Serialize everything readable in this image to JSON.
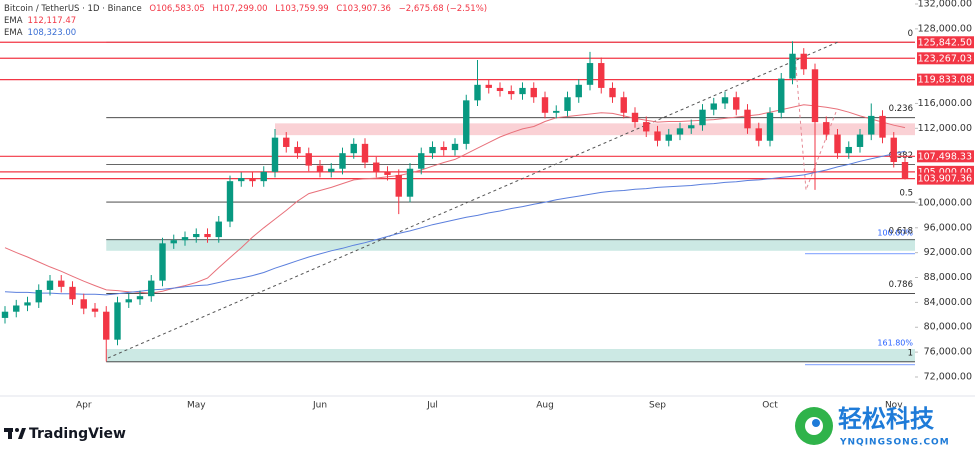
{
  "header": {
    "symbol": "Bitcoin / TetherUS · 1D · Binance",
    "open": "O106,583.05",
    "high": "H107,299.00",
    "low": "L103,759.99",
    "close": "C103,907.36",
    "change": "−2,675.68 (−2.51%)"
  },
  "branding": {
    "logo": "TradingView",
    "watermark": "轻松科技",
    "watermark_url": "YNQINGSONG.COM"
  },
  "chart_data": {
    "type": "candlestick",
    "categories": [
      null,
      null,
      null,
      null,
      null,
      null,
      null,
      "Apr",
      null,
      null,
      null,
      null,
      null,
      null,
      null,
      null,
      null,
      "May",
      null,
      null,
      null,
      null,
      null,
      null,
      null,
      null,
      null,
      null,
      "Jun",
      null,
      null,
      null,
      null,
      null,
      null,
      null,
      null,
      null,
      "Jul",
      null,
      null,
      null,
      null,
      null,
      null,
      null,
      null,
      null,
      "Aug",
      null,
      null,
      null,
      null,
      null,
      null,
      null,
      null,
      null,
      "Sep",
      null,
      null,
      null,
      null,
      null,
      null,
      null,
      null,
      null,
      "Oct",
      null,
      null,
      null,
      null,
      null,
      null,
      null,
      null,
      null,
      null,
      "Nov",
      null
    ],
    "open": [
      81500,
      82500,
      83500,
      84000,
      86000,
      87500,
      86500,
      84500,
      83000,
      82500,
      78000,
      84000,
      84500,
      85000,
      87500,
      93500,
      94000,
      94500,
      95000,
      94500,
      97000,
      103500,
      104000,
      103500,
      105000,
      110500,
      109000,
      108000,
      106000,
      105000,
      105500,
      108000,
      109500,
      106500,
      105000,
      104500,
      101000,
      105500,
      108000,
      109000,
      108500,
      109500,
      116500,
      119000,
      118500,
      118000,
      117500,
      118500,
      117000,
      114500,
      114800,
      117000,
      119000,
      122500,
      118500,
      117000,
      114500,
      113000,
      111500,
      110000,
      111000,
      112000,
      112500,
      115000,
      116000,
      117000,
      115000,
      112000,
      110000,
      114500,
      120000,
      124000,
      121500,
      113000,
      111000,
      108000,
      109000,
      111000,
      114000,
      110500,
      106583.05
    ],
    "high": [
      83400,
      84400,
      84900,
      86900,
      88400,
      88400,
      87400,
      85400,
      83900,
      83400,
      84900,
      85400,
      85900,
      88400,
      94400,
      94900,
      95400,
      95900,
      95900,
      97900,
      104400,
      104900,
      104900,
      105900,
      111900,
      111400,
      109900,
      108900,
      106900,
      106400,
      108900,
      110400,
      110400,
      107400,
      105900,
      105400,
      106400,
      108900,
      109900,
      109900,
      110400,
      117400,
      123000,
      119900,
      119400,
      118900,
      119400,
      119400,
      117900,
      115700,
      117900,
      119900,
      124300,
      123400,
      119400,
      117900,
      115400,
      113900,
      112400,
      111900,
      112900,
      113400,
      115900,
      116900,
      117900,
      117900,
      115900,
      112900,
      115400,
      120900,
      126000,
      124900,
      122400,
      113900,
      111900,
      109900,
      111900,
      116000,
      114900,
      111400,
      107299
    ],
    "low": [
      80600,
      81600,
      82600,
      83100,
      85100,
      85600,
      83600,
      82100,
      81600,
      74500,
      77100,
      83100,
      83600,
      84100,
      86600,
      92600,
      93100,
      93600,
      93600,
      93600,
      96100,
      102600,
      102600,
      102600,
      104100,
      108100,
      107100,
      105100,
      104100,
      104100,
      104600,
      107100,
      105600,
      104100,
      103600,
      98200,
      100100,
      104600,
      107100,
      107600,
      107600,
      108600,
      115600,
      117600,
      117100,
      116600,
      116600,
      116100,
      113600,
      113600,
      113900,
      116100,
      118100,
      117600,
      116100,
      113600,
      112100,
      110600,
      109100,
      109100,
      110100,
      111100,
      111600,
      114100,
      115100,
      114100,
      111100,
      109100,
      109100,
      113600,
      119100,
      120600,
      102100,
      110100,
      107100,
      107100,
      108100,
      110100,
      109600,
      105700,
      103759.99
    ],
    "close": [
      82500,
      83500,
      84000,
      86000,
      87500,
      86500,
      84500,
      83000,
      82500,
      78000,
      84000,
      84500,
      85000,
      87500,
      93500,
      94000,
      94500,
      95000,
      94500,
      97000,
      103500,
      104000,
      103500,
      105000,
      110500,
      109000,
      108000,
      106000,
      105000,
      105500,
      108000,
      109500,
      106500,
      105000,
      104500,
      101000,
      105500,
      108000,
      109000,
      108500,
      109500,
      116500,
      119000,
      118500,
      118000,
      117500,
      118500,
      117000,
      114500,
      114800,
      117000,
      119000,
      122500,
      118500,
      117000,
      114500,
      113000,
      111500,
      110000,
      111000,
      112000,
      112500,
      115000,
      116000,
      117000,
      115000,
      112000,
      110000,
      114500,
      120000,
      124000,
      121500,
      113000,
      111000,
      108000,
      109000,
      111000,
      114000,
      110500,
      106583.05,
      103907.36
    ],
    "up_color": "#089981",
    "down_color": "#f23645",
    "series": [
      {
        "name": "EMA",
        "legend_value": "112,117.47",
        "color": "#e8707a",
        "values": [
          92800,
          92000,
          91300,
          90500,
          89700,
          89000,
          88200,
          87400,
          86700,
          86000,
          85900,
          85700,
          85600,
          85500,
          85800,
          86300,
          86700,
          87200,
          87900,
          89600,
          91200,
          92800,
          94500,
          96000,
          97400,
          98800,
          100300,
          101500,
          102000,
          102500,
          103100,
          103700,
          103900,
          104000,
          104200,
          104400,
          104800,
          105300,
          105900,
          106500,
          107000,
          107900,
          108800,
          109700,
          110600,
          111300,
          111900,
          112300,
          113100,
          113700,
          113900,
          114100,
          114300,
          114500,
          114400,
          114000,
          113600,
          113300,
          113000,
          113100,
          113100,
          113200,
          113300,
          113400,
          113600,
          113800,
          114000,
          114200,
          114600,
          115000,
          115400,
          115800,
          115600,
          115400,
          115100,
          114600,
          114000,
          113500,
          113000,
          112500,
          112117.47
        ]
      },
      {
        "name": "EMA",
        "legend_value": "108,323.00",
        "color": "#5b7fdd",
        "values": [
          85700,
          85600,
          85600,
          85500,
          85500,
          85400,
          85400,
          85300,
          85300,
          85200,
          85400,
          85600,
          85800,
          86000,
          86100,
          86300,
          86500,
          86700,
          86800,
          87200,
          87600,
          87900,
          88300,
          88800,
          89500,
          90100,
          90700,
          91300,
          91800,
          92300,
          92700,
          93200,
          93600,
          94100,
          94600,
          95100,
          95500,
          96000,
          96500,
          96900,
          97300,
          97700,
          98000,
          98400,
          98700,
          99100,
          99400,
          99800,
          100100,
          100500,
          100800,
          101100,
          101400,
          101700,
          101900,
          102000,
          102200,
          102300,
          102500,
          102600,
          102700,
          102800,
          103000,
          103100,
          103300,
          103400,
          103600,
          103700,
          103900,
          104100,
          104300,
          104500,
          104900,
          105300,
          105800,
          106200,
          106700,
          107100,
          107500,
          107900,
          108323
        ]
      }
    ],
    "ylim": [
      69100,
      132000
    ],
    "yticks": [
      {
        "value": 72000,
        "label": "72,000.00"
      },
      {
        "value": 76000,
        "label": "76,000.00"
      },
      {
        "value": 80000,
        "label": "80,000.00"
      },
      {
        "value": 84000,
        "label": "84,000.00"
      },
      {
        "value": 88000,
        "label": "88,000.00"
      },
      {
        "value": 92000,
        "label": "92,000.00"
      },
      {
        "value": 96000,
        "label": "96,000.00"
      },
      {
        "value": 100000,
        "label": "100,000.00"
      },
      {
        "value": 112000,
        "label": "112,000.00"
      },
      {
        "value": 116000,
        "label": "116,000.00"
      },
      {
        "value": 128000,
        "label": "128,000.00"
      },
      {
        "value": 132000,
        "label": "132,000.00"
      }
    ],
    "grid": false,
    "price_lines": [
      {
        "value": 125842.5,
        "label": "125,842.50"
      },
      {
        "value": 123267.03,
        "label": "123,267.03"
      },
      {
        "value": 119833.08,
        "label": "119,833.08"
      },
      {
        "value": 107498.33,
        "label": "107,498.33"
      },
      {
        "value": 105000,
        "label": "105,000.00"
      },
      {
        "value": 103907.36,
        "label": "103,907.36"
      }
    ],
    "price_line_color": "#f23645",
    "fib_start": 9,
    "fib_levels": [
      {
        "value": 125842.5,
        "label": "0"
      },
      {
        "value": 113710,
        "label": "0.236"
      },
      {
        "value": 106205,
        "label": "0.382"
      },
      {
        "value": 100139,
        "label": "0.5"
      },
      {
        "value": 94073,
        "label": "0.618"
      },
      {
        "value": 85437,
        "label": "0.786"
      },
      {
        "value": 74436,
        "label": "1"
      }
    ],
    "zones": [
      {
        "from": 110900,
        "to": 112800,
        "start": 24,
        "color": "#f9c6cb"
      },
      {
        "from": 92300,
        "to": 94200,
        "start": 9,
        "color": "#bfe3dd",
        "label": "100.00%"
      },
      {
        "from": 74436,
        "to": 76500,
        "start": 9,
        "color": "#bfe3dd",
        "label": "161.80%"
      }
    ]
  }
}
